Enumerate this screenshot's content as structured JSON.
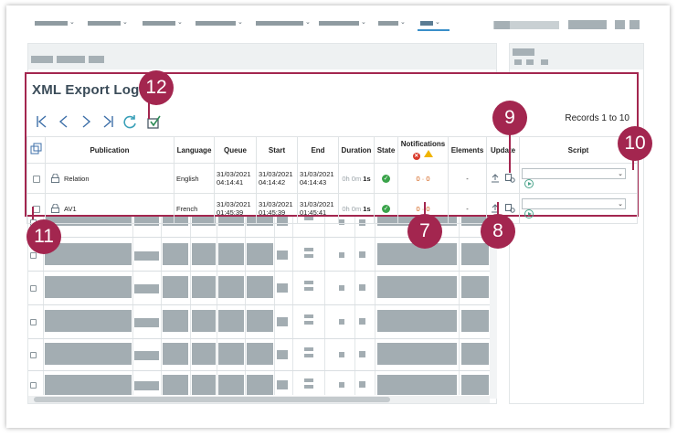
{
  "page": {
    "title": "XML Export Log",
    "records": "Records 1 to 10"
  },
  "table": {
    "headers": {
      "publication": "Publication",
      "language": "Language",
      "queue": "Queue",
      "start": "Start",
      "end": "End",
      "duration": "Duration",
      "state": "State",
      "notifications": "Notifications",
      "elements": "Elements",
      "update": "Update",
      "script": "Script"
    },
    "rows": [
      {
        "publication": "Relation",
        "language": "English",
        "queue_date": "31/03/2021",
        "queue_time": "04:14:41",
        "start_date": "31/03/2021",
        "start_time": "04:14:42",
        "end_date": "31/03/2021",
        "end_time": "04:14:43",
        "duration_muted": "0h 0m",
        "duration_bold": "1s",
        "notifications": "0 · 0",
        "elements": "-"
      },
      {
        "publication": "AV1",
        "language": "French",
        "queue_date": "31/03/2021",
        "queue_time": "01:45:39",
        "start_date": "31/03/2021",
        "start_time": "01:45:39",
        "end_date": "31/03/2021",
        "end_time": "01:45:41",
        "duration_muted": "0h 0m",
        "duration_bold": "1s",
        "notifications": "0 · 0",
        "elements": "-"
      }
    ]
  },
  "callouts": {
    "c7": "7",
    "c8": "8",
    "c9": "9",
    "c10": "10",
    "c11": "11",
    "c12": "12"
  },
  "icons": {
    "toolbar": [
      "first-page-icon",
      "previous-page-icon",
      "next-page-icon",
      "last-page-icon",
      "refresh-icon",
      "select-all-check-icon"
    ],
    "row": [
      "publication-icon",
      "state-success-icon",
      "upload-icon",
      "settings-icon",
      "play-script-icon"
    ]
  },
  "colors": {
    "callout": "#a3264f",
    "success": "#3aa34a",
    "error": "#d93a2b",
    "warning": "#f0b400",
    "nav_active": "#3a8fc9"
  }
}
